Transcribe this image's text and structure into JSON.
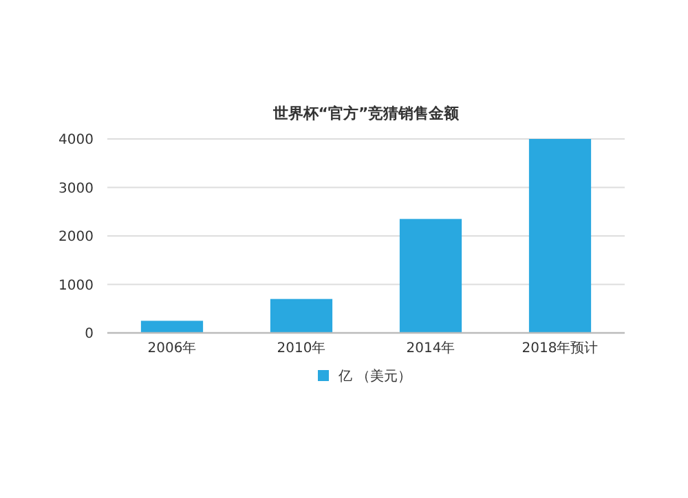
{
  "chart_data": {
    "type": "bar",
    "title": "世界杯“官方”竞猜销售金额",
    "categories": [
      "2006年",
      "2010年",
      "2014年",
      "2018年预计"
    ],
    "series": [
      {
        "name": "亿 （美元）",
        "color": "#29a8e0",
        "values": [
          250,
          700,
          2350,
          4000
        ]
      }
    ],
    "ylim": [
      0,
      4000
    ],
    "yticks": [
      0,
      1000,
      2000,
      3000,
      4000
    ],
    "grid": "y",
    "legend": "bottom"
  }
}
